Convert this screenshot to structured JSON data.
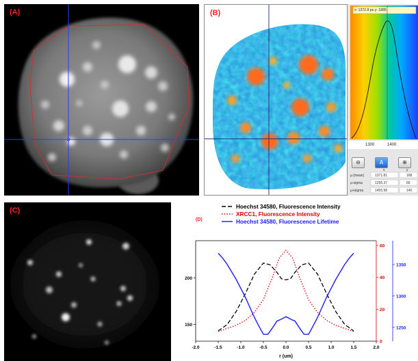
{
  "panels": {
    "a": {
      "label": "(A)"
    },
    "b": {
      "label": "(B)",
      "coord_readout": "x: 1372.8 ps y: 1885",
      "xticks": [
        "1300",
        "1400"
      ],
      "stats": {
        "header": [
          "",
          "x",
          "y"
        ],
        "rows": [
          [
            "µ (mean)",
            "1371.81",
            "168"
          ],
          [
            "µ-sigma",
            "1295.37",
            "89"
          ],
          [
            "µ+sigma",
            "1455.58",
            "140"
          ]
        ]
      }
    },
    "c": {
      "label": "(C)"
    },
    "d": {
      "label": "(D)"
    }
  },
  "colors": {
    "hoechst_intensity": "#000000",
    "xrcc1_intensity": "#e00000",
    "hoechst_lifetime": "#1a1aff",
    "label": "#ff2020",
    "crosshair": "#2a3cff"
  },
  "chart_data": {
    "type": "line",
    "xlabel": "r (um)",
    "xlim": [
      -2.0,
      2.0
    ],
    "xticks": [
      "-2.0",
      "-1.5",
      "-1.0",
      "-0.5",
      "0.0",
      "0.5",
      "1.0",
      "1.5",
      "2.0"
    ],
    "legend_position": "top",
    "axes": {
      "left": {
        "ylim": [
          132,
          240
        ],
        "ticks": [
          "150",
          "200"
        ]
      },
      "red": {
        "ylim": [
          0,
          63
        ],
        "ticks": [
          "0",
          "20",
          "40",
          "60"
        ]
      },
      "blue": {
        "ylim": [
          1228,
          1388
        ],
        "ticks": [
          "1250",
          "1300",
          "1350"
        ]
      }
    },
    "series": [
      {
        "name": "Hoechst 34580, Fluorescence Intensity",
        "axis": "left",
        "style": "dashed",
        "color_key": "hoechst_intensity",
        "x": [
          -1.5,
          -1.3,
          -1.1,
          -0.9,
          -0.7,
          -0.5,
          -0.35,
          -0.2,
          -0.1,
          0.0,
          0.1,
          0.2,
          0.35,
          0.5,
          0.7,
          0.9,
          1.1,
          1.3,
          1.5
        ],
        "y": [
          143,
          150,
          164,
          183,
          204,
          216,
          214,
          206,
          199,
          198,
          199,
          206,
          214,
          216,
          204,
          183,
          164,
          150,
          143
        ]
      },
      {
        "name": "XRCC1, Fluorescence Intensity",
        "axis": "red",
        "style": "dotted",
        "color_key": "xrcc1_intensity",
        "x": [
          -1.5,
          -1.3,
          -1.1,
          -0.9,
          -0.7,
          -0.5,
          -0.3,
          -0.15,
          0.0,
          0.15,
          0.3,
          0.5,
          0.7,
          0.9,
          1.1,
          1.3,
          1.5
        ],
        "y": [
          6,
          8,
          10,
          13,
          18,
          26,
          40,
          52,
          57,
          52,
          40,
          26,
          18,
          13,
          10,
          8,
          6
        ]
      },
      {
        "name": "Hoechst 34580, Fluorescence Lifetime",
        "axis": "blue",
        "style": "solid",
        "color_key": "hoechst_lifetime",
        "x": [
          -1.5,
          -1.4,
          -1.3,
          -1.2,
          -1.1,
          -1.0,
          -0.9,
          -0.8,
          -0.7,
          -0.6,
          -0.5,
          -0.4,
          -0.3,
          -0.2,
          -0.1,
          0.0,
          0.1,
          0.2,
          0.3,
          0.4,
          0.5,
          0.6,
          0.7,
          0.8,
          0.9,
          1.0,
          1.1,
          1.2,
          1.3,
          1.4,
          1.5
        ],
        "y": [
          1368,
          1360,
          1350,
          1338,
          1326,
          1312,
          1298,
          1282,
          1266,
          1252,
          1239,
          1239,
          1249,
          1260,
          1263,
          1267,
          1263,
          1260,
          1249,
          1239,
          1239,
          1252,
          1266,
          1282,
          1298,
          1312,
          1326,
          1338,
          1350,
          1360,
          1368
        ]
      }
    ]
  }
}
